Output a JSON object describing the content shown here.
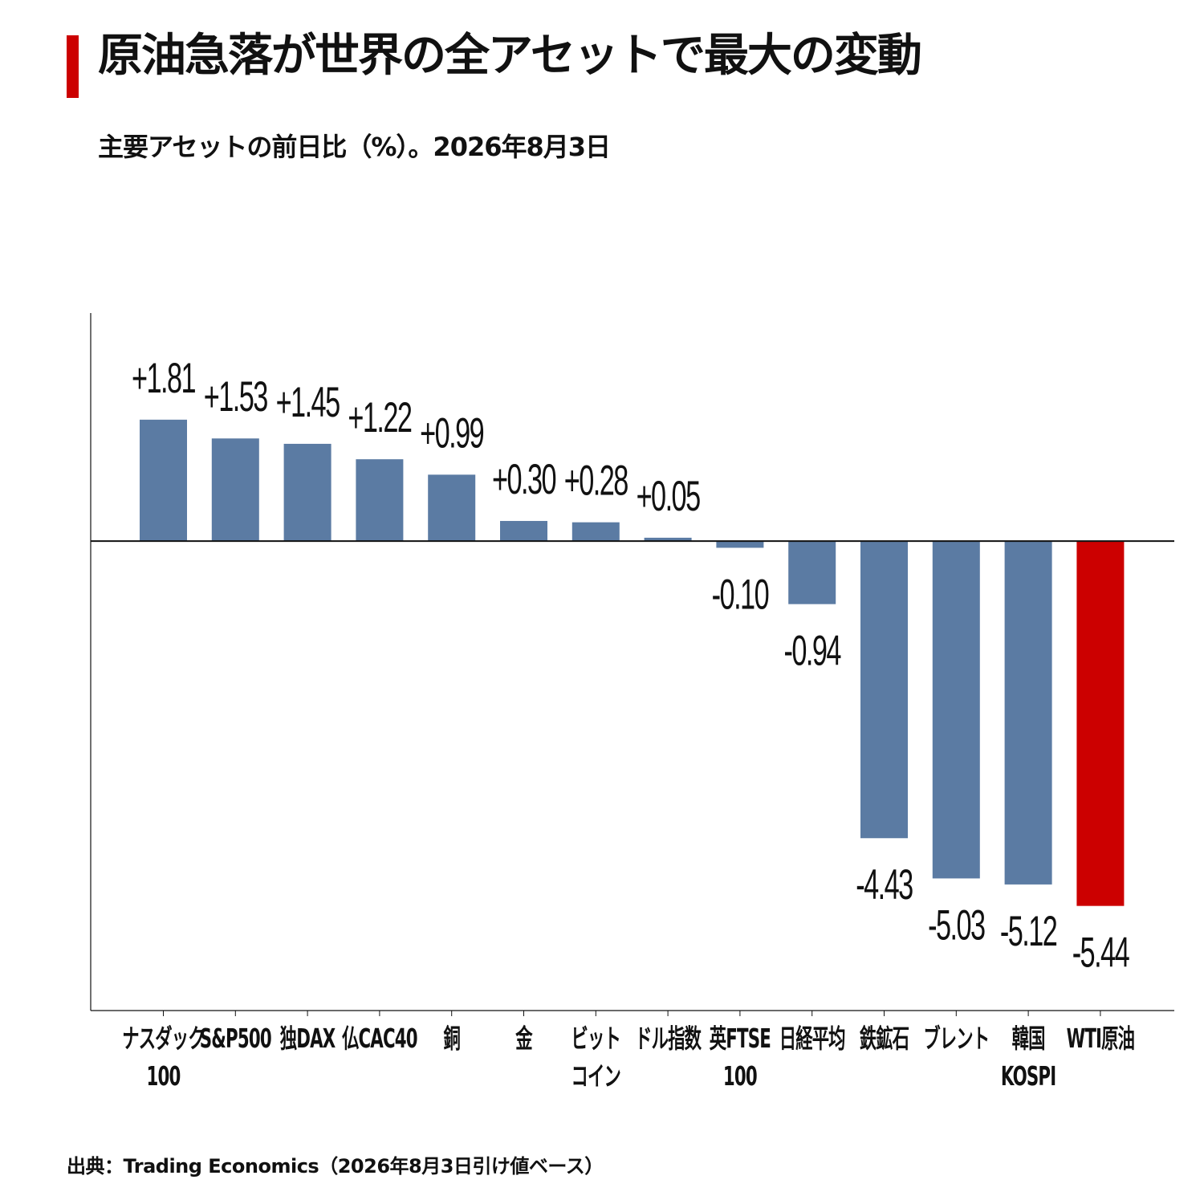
{
  "header": {
    "title": "原油急落が世界の全アセットで最大の変動",
    "subtitle": "主要アセットの前日比（%）。2026年8月3日"
  },
  "footer": {
    "source": "出典：Trading Economics（2026年8月3日引け値ベース）"
  },
  "colors": {
    "accent": "#cc0000",
    "bar": "#5b7ba3",
    "highlight_bar": "#cc0000",
    "axis": "#111111"
  },
  "chart_data": {
    "type": "bar",
    "categories": [
      [
        "ナスダック",
        "100"
      ],
      [
        "S&P500"
      ],
      [
        "独DAX"
      ],
      [
        "仏CAC40"
      ],
      [
        "銅"
      ],
      [
        "金"
      ],
      [
        "ビット",
        "コイン"
      ],
      [
        "ドル指数"
      ],
      [
        "英FTSE",
        "100"
      ],
      [
        "日経平均"
      ],
      [
        "鉄鉱石"
      ],
      [
        "ブレント"
      ],
      [
        "韓国",
        "KOSPI"
      ],
      [
        "WTI原油"
      ]
    ],
    "values": [
      1.81,
      1.53,
      1.45,
      1.22,
      0.99,
      0.3,
      0.28,
      0.05,
      -0.1,
      -0.94,
      -4.43,
      -5.03,
      -5.12,
      -5.44
    ],
    "value_labels": [
      "+1.81",
      "+1.53",
      "+1.45",
      "+1.22",
      "+0.99",
      "+0.30",
      "+0.28",
      "+0.05",
      "-0.10",
      "-0.94",
      "-4.43",
      "-5.03",
      "-5.12",
      "-5.44"
    ],
    "highlight_index": 13,
    "ylim": [
      -7.0,
      3.4
    ],
    "grid": false,
    "legend": "none"
  }
}
